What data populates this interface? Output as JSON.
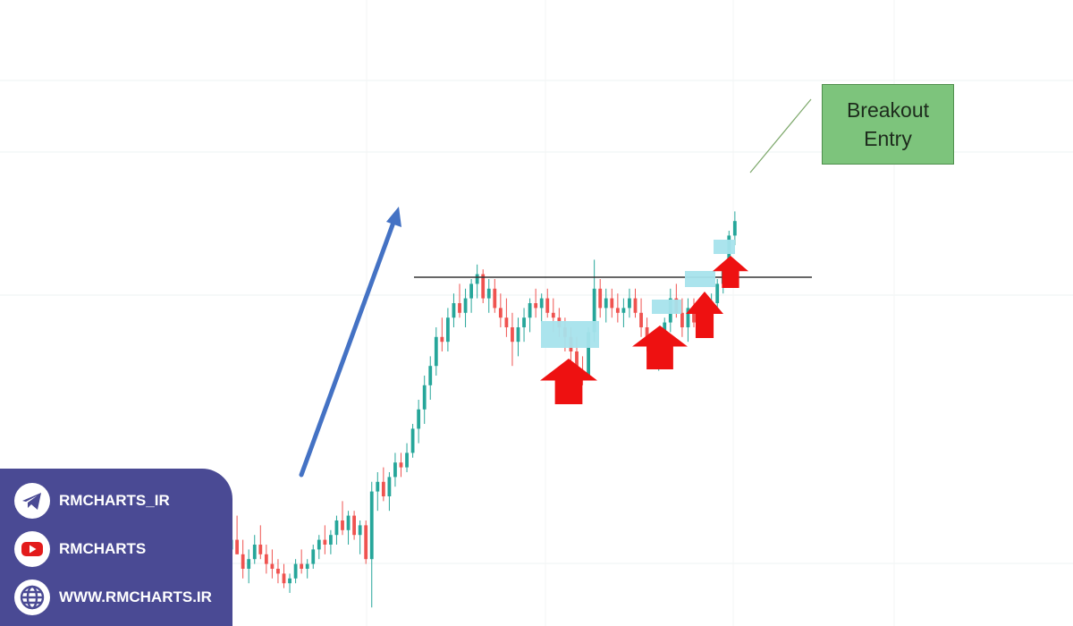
{
  "annotation": {
    "line1": "Breakout",
    "line2": "Entry"
  },
  "social": {
    "telegram": {
      "icon": "telegram-icon",
      "label": "RMCHARTS_IR"
    },
    "youtube": {
      "icon": "youtube-icon",
      "label": "RMCHARTS"
    },
    "website": {
      "icon": "globe-icon",
      "label": "WWW.RMCHARTS.IR"
    }
  },
  "colors": {
    "bull": "#26a69a",
    "bear": "#ef5350",
    "trend_arrow": "#4472c4",
    "support_box": "#a6e3ec",
    "signal_arrow": "#ee1111",
    "resistance": "#333333",
    "callout": "#7dc47c",
    "panel": "#4a4a94"
  },
  "chart_data": {
    "type": "candlestick",
    "title": "",
    "xlabel": "",
    "ylabel": "",
    "grid": true,
    "ylim": [
      0,
      100
    ],
    "candles": [
      [
        16,
        19,
        11,
        14
      ],
      [
        14,
        18,
        10,
        16
      ],
      [
        16,
        21,
        13,
        13
      ],
      [
        13,
        16,
        8,
        10
      ],
      [
        10,
        14,
        7,
        12
      ],
      [
        12,
        17,
        11,
        15
      ],
      [
        15,
        19,
        12,
        13
      ],
      [
        13,
        15,
        9,
        11
      ],
      [
        11,
        14,
        8,
        10
      ],
      [
        10,
        12,
        7,
        9
      ],
      [
        9,
        11,
        6,
        7
      ],
      [
        7,
        9,
        5,
        8
      ],
      [
        8,
        12,
        7,
        11
      ],
      [
        11,
        14,
        9,
        10
      ],
      [
        10,
        12,
        8,
        11
      ],
      [
        11,
        15,
        10,
        14
      ],
      [
        14,
        17,
        12,
        16
      ],
      [
        16,
        19,
        13,
        15
      ],
      [
        15,
        18,
        13,
        17
      ],
      [
        17,
        21,
        15,
        20
      ],
      [
        20,
        24,
        17,
        18
      ],
      [
        18,
        22,
        15,
        21
      ],
      [
        21,
        22,
        16,
        17
      ],
      [
        17,
        20,
        13,
        19
      ],
      [
        19,
        20,
        11,
        12
      ],
      [
        12,
        28,
        2,
        26
      ],
      [
        26,
        30,
        22,
        28
      ],
      [
        28,
        31,
        24,
        25
      ],
      [
        25,
        30,
        22,
        29
      ],
      [
        29,
        34,
        27,
        32
      ],
      [
        32,
        34,
        29,
        31
      ],
      [
        31,
        36,
        30,
        34
      ],
      [
        34,
        40,
        33,
        39
      ],
      [
        39,
        45,
        36,
        43
      ],
      [
        43,
        50,
        40,
        48
      ],
      [
        48,
        54,
        45,
        52
      ],
      [
        52,
        60,
        50,
        58
      ],
      [
        58,
        62,
        55,
        57
      ],
      [
        57,
        64,
        55,
        62
      ],
      [
        62,
        67,
        60,
        65
      ],
      [
        65,
        69,
        62,
        63
      ],
      [
        63,
        68,
        60,
        66
      ],
      [
        66,
        70,
        63,
        69
      ],
      [
        69,
        73,
        66,
        71
      ],
      [
        71,
        72,
        65,
        66
      ],
      [
        66,
        70,
        63,
        68
      ],
      [
        68,
        70,
        63,
        64
      ],
      [
        64,
        67,
        60,
        62
      ],
      [
        62,
        66,
        58,
        60
      ],
      [
        60,
        63,
        52,
        57
      ],
      [
        57,
        62,
        54,
        60
      ],
      [
        60,
        64,
        57,
        62
      ],
      [
        62,
        66,
        59,
        65
      ],
      [
        65,
        68,
        62,
        64
      ],
      [
        64,
        67,
        61,
        66
      ],
      [
        66,
        68,
        62,
        63
      ],
      [
        63,
        66,
        59,
        62
      ],
      [
        62,
        64,
        58,
        60
      ],
      [
        60,
        62,
        55,
        58
      ],
      [
        58,
        60,
        52,
        55
      ],
      [
        55,
        58,
        48,
        51
      ],
      [
        51,
        54,
        48,
        50
      ],
      [
        50,
        60,
        49,
        59
      ],
      [
        59,
        74,
        57,
        68
      ],
      [
        68,
        70,
        62,
        64
      ],
      [
        64,
        68,
        61,
        66
      ],
      [
        66,
        68,
        62,
        64
      ],
      [
        64,
        67,
        61,
        63
      ],
      [
        63,
        66,
        60,
        64
      ],
      [
        64,
        68,
        62,
        66
      ],
      [
        66,
        68,
        62,
        63
      ],
      [
        63,
        66,
        58,
        60
      ],
      [
        60,
        62,
        55,
        57
      ],
      [
        57,
        59,
        52,
        54
      ],
      [
        54,
        58,
        51,
        56
      ],
      [
        56,
        62,
        54,
        61
      ],
      [
        61,
        68,
        59,
        66
      ],
      [
        66,
        69,
        62,
        63
      ],
      [
        63,
        66,
        58,
        60
      ],
      [
        60,
        66,
        57,
        64
      ],
      [
        64,
        66,
        60,
        61
      ],
      [
        61,
        64,
        58,
        62
      ],
      [
        62,
        66,
        60,
        64
      ],
      [
        64,
        67,
        62,
        65
      ],
      [
        65,
        70,
        63,
        69
      ],
      [
        69,
        73,
        67,
        72
      ],
      [
        72,
        80,
        70,
        79
      ],
      [
        79,
        84,
        77,
        82
      ]
    ],
    "resistance_level": 70
  }
}
